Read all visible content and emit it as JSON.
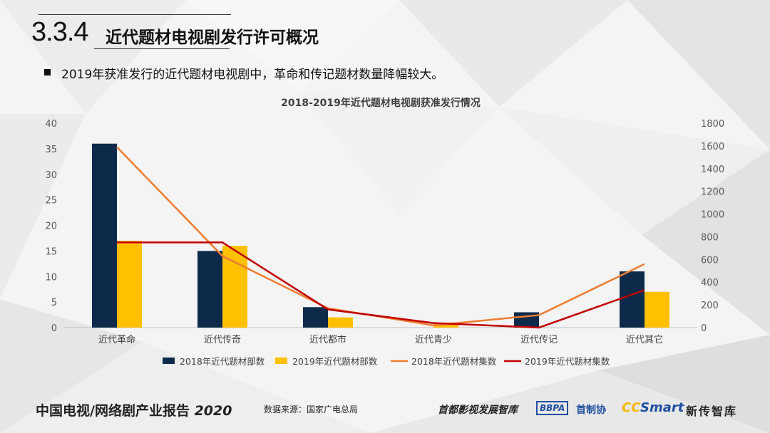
{
  "section": {
    "number": "3.3.4",
    "title": "近代题材电视剧发行许可概况"
  },
  "bullet": "2019年获准发行的近代题材电视剧中，革命和传记题材数量降幅较大。",
  "chart_data": {
    "type": "bar",
    "title": "2018-2019年近代题材电视剧获准发行情况",
    "categories": [
      "近代革命",
      "近代传奇",
      "近代都市",
      "近代青少",
      "近代传记",
      "近代其它"
    ],
    "left_axis": {
      "ylim": [
        0,
        40
      ],
      "ticks": [
        0,
        5,
        10,
        15,
        20,
        25,
        30,
        35,
        40
      ]
    },
    "right_axis": {
      "ylim": [
        0,
        1800
      ],
      "ticks": [
        0,
        200,
        400,
        600,
        800,
        1000,
        1200,
        1400,
        1600,
        1800
      ]
    },
    "series": [
      {
        "name": "2018年近代题材部数",
        "kind": "bar",
        "axis": "left",
        "color": "#0d2a4a",
        "values": [
          36,
          15,
          4,
          0,
          3,
          11
        ]
      },
      {
        "name": "2019年近代题材部数",
        "kind": "bar",
        "axis": "left",
        "color": "#ffc000",
        "values": [
          17,
          16,
          2,
          1,
          0,
          7
        ]
      },
      {
        "name": "2018年近代题材集数",
        "kind": "line",
        "axis": "right",
        "color": "#ed7d31",
        "values": [
          1590,
          630,
          170,
          20,
          110,
          560
        ]
      },
      {
        "name": "2019年近代题材集数",
        "kind": "line",
        "axis": "right",
        "color": "#c00000",
        "values": [
          750,
          750,
          160,
          40,
          0,
          330
        ]
      }
    ],
    "legend_position": "bottom",
    "grid": false
  },
  "footer": {
    "report": "中国电视/网络剧产业报告",
    "year": "2020",
    "source": "数据来源：国家广电总局",
    "logo1": "首都影视发展智库",
    "logo2_mark": "BBPA",
    "logo2_text": "首制协",
    "logo3_a": "CC",
    "logo3_b": "Smart",
    "logo3_c": "新传智库"
  },
  "colors": {
    "accent_navy": "#0d2a4a",
    "accent_gold": "#ffc000",
    "line_orange": "#ed7d31",
    "line_red": "#c00000"
  }
}
